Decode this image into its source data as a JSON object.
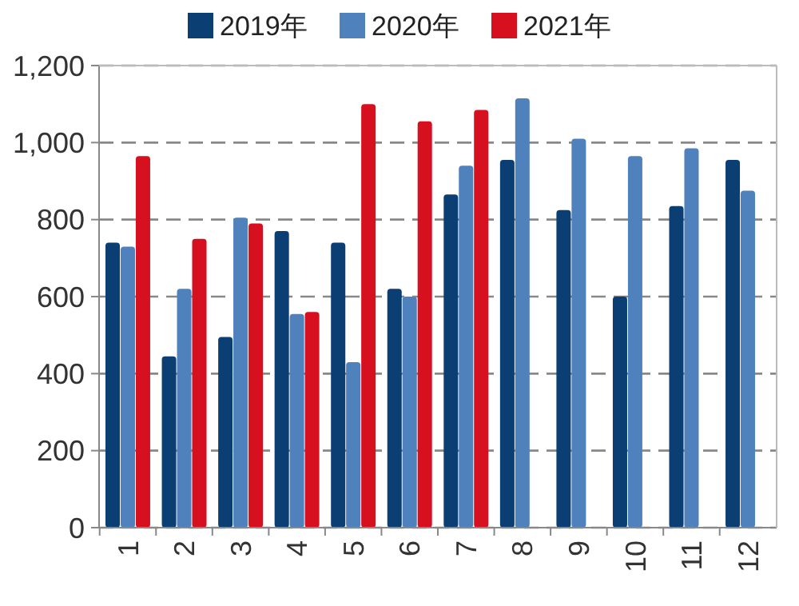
{
  "chart_data": {
    "type": "bar",
    "categories": [
      "1",
      "2",
      "3",
      "4",
      "5",
      "6",
      "7",
      "8",
      "9",
      "10",
      "11",
      "12"
    ],
    "series": [
      {
        "name": "2019年",
        "color": "#0b3f73",
        "values": [
          740,
          445,
          495,
          770,
          740,
          620,
          865,
          955,
          825,
          600,
          835,
          955
        ]
      },
      {
        "name": "2020年",
        "color": "#4f81bd",
        "values": [
          730,
          620,
          805,
          555,
          430,
          600,
          940,
          1115,
          1010,
          965,
          985,
          875
        ]
      },
      {
        "name": "2021年",
        "color": "#d7101f",
        "values": [
          965,
          750,
          790,
          560,
          1100,
          1055,
          1085,
          null,
          null,
          null,
          null,
          null
        ]
      }
    ],
    "ylim": [
      0,
      1200
    ],
    "yticks": [
      0,
      {
        "value": 200,
        "label": "200"
      },
      {
        "value": 400,
        "label": "400"
      },
      {
        "value": 600,
        "label": "600"
      },
      {
        "value": 800,
        "label": "800"
      },
      {
        "value": 1000,
        "label": "1,000"
      },
      {
        "value": 1200,
        "label": "1,200"
      }
    ],
    "grid": "y",
    "legend": "top"
  }
}
